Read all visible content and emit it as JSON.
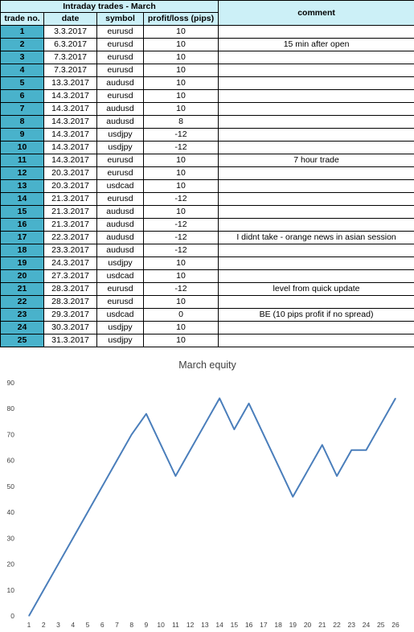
{
  "table": {
    "title": "Intraday trades - March",
    "headers": {
      "trade_no": "trade no.",
      "date": "date",
      "symbol": "symbol",
      "profit_loss": "profit/loss (pips)",
      "comment": "comment"
    },
    "rows": [
      {
        "no": "1",
        "date": "3.3.2017",
        "symbol": "eurusd",
        "pl": "10",
        "comment": ""
      },
      {
        "no": "2",
        "date": "6.3.2017",
        "symbol": "eurusd",
        "pl": "10",
        "comment": "15 min after open"
      },
      {
        "no": "3",
        "date": "7.3.2017",
        "symbol": "eurusd",
        "pl": "10",
        "comment": ""
      },
      {
        "no": "4",
        "date": "7.3.2017",
        "symbol": "eurusd",
        "pl": "10",
        "comment": ""
      },
      {
        "no": "5",
        "date": "13.3.2017",
        "symbol": "audusd",
        "pl": "10",
        "comment": ""
      },
      {
        "no": "6",
        "date": "14.3.2017",
        "symbol": "eurusd",
        "pl": "10",
        "comment": ""
      },
      {
        "no": "7",
        "date": "14.3.2017",
        "symbol": "audusd",
        "pl": "10",
        "comment": ""
      },
      {
        "no": "8",
        "date": "14.3.2017",
        "symbol": "audusd",
        "pl": "8",
        "comment": ""
      },
      {
        "no": "9",
        "date": "14.3.2017",
        "symbol": "usdjpy",
        "pl": "-12",
        "comment": ""
      },
      {
        "no": "10",
        "date": "14.3.2017",
        "symbol": "usdjpy",
        "pl": "-12",
        "comment": ""
      },
      {
        "no": "11",
        "date": "14.3.2017",
        "symbol": "eurusd",
        "pl": "10",
        "comment": "7 hour trade"
      },
      {
        "no": "12",
        "date": "20.3.2017",
        "symbol": "eurusd",
        "pl": "10",
        "comment": ""
      },
      {
        "no": "13",
        "date": "20.3.2017",
        "symbol": "usdcad",
        "pl": "10",
        "comment": ""
      },
      {
        "no": "14",
        "date": "21.3.2017",
        "symbol": "eurusd",
        "pl": "-12",
        "comment": ""
      },
      {
        "no": "15",
        "date": "21.3.2017",
        "symbol": "audusd",
        "pl": "10",
        "comment": ""
      },
      {
        "no": "16",
        "date": "21.3.2017",
        "symbol": "audusd",
        "pl": "-12",
        "comment": ""
      },
      {
        "no": "17",
        "date": "22.3.2017",
        "symbol": "audusd",
        "pl": "-12",
        "comment": "I didnt take - orange news in asian session"
      },
      {
        "no": "18",
        "date": "23.3.2017",
        "symbol": "audusd",
        "pl": "-12",
        "comment": ""
      },
      {
        "no": "19",
        "date": "24.3.2017",
        "symbol": "usdjpy",
        "pl": "10",
        "comment": ""
      },
      {
        "no": "20",
        "date": "27.3.2017",
        "symbol": "usdcad",
        "pl": "10",
        "comment": ""
      },
      {
        "no": "21",
        "date": "28.3.2017",
        "symbol": "eurusd",
        "pl": "-12",
        "comment": "level from quick update"
      },
      {
        "no": "22",
        "date": "28.3.2017",
        "symbol": "eurusd",
        "pl": "10",
        "comment": ""
      },
      {
        "no": "23",
        "date": "29.3.2017",
        "symbol": "usdcad",
        "pl": "0",
        "comment": "BE  (10 pips profit  if  no spread)"
      },
      {
        "no": "24",
        "date": "30.3.2017",
        "symbol": "usdjpy",
        "pl": "10",
        "comment": ""
      },
      {
        "no": "25",
        "date": "31.3.2017",
        "symbol": "usdjpy",
        "pl": "10",
        "comment": ""
      }
    ]
  },
  "colors": {
    "header_fill": "#ccf0f7",
    "trade_no_fill": "#49b2cb",
    "line": "#4a7ebb",
    "gridline": "#d9d9d9",
    "axis_text": "#404040"
  },
  "chart_data": {
    "type": "line",
    "title": "March equity",
    "xlabel": "",
    "ylabel": "",
    "x": [
      1,
      2,
      3,
      4,
      5,
      6,
      7,
      8,
      9,
      10,
      11,
      12,
      13,
      14,
      15,
      16,
      17,
      18,
      19,
      20,
      21,
      22,
      23,
      24,
      25,
      26
    ],
    "series": [
      {
        "values": [
          0,
          10,
          20,
          30,
          40,
          50,
          60,
          70,
          78,
          66,
          54,
          64,
          74,
          84,
          72,
          82,
          70,
          58,
          46,
          56,
          66,
          54,
          64,
          64,
          74,
          84
        ]
      }
    ],
    "ylim": [
      0,
      90
    ],
    "yticks": [
      0,
      10,
      20,
      30,
      40,
      50,
      60,
      70,
      80,
      90
    ],
    "grid": false,
    "legend": "none"
  }
}
